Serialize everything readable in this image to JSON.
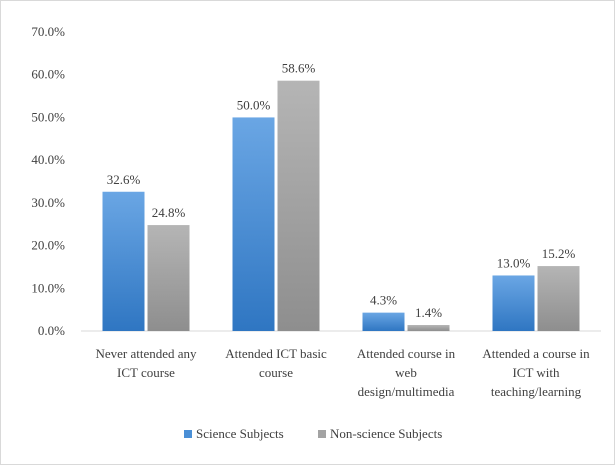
{
  "chart_data": {
    "type": "bar",
    "categories": [
      [
        "Never attended any",
        "ICT course"
      ],
      [
        "Attended ICT basic",
        "course"
      ],
      [
        "Attended course in",
        "web",
        "design/multimedia"
      ],
      [
        "Attended a course in",
        "ICT with",
        "teaching/learning"
      ]
    ],
    "series": [
      {
        "name": "Science Subjects",
        "values": [
          32.6,
          50.0,
          4.3,
          13.0
        ],
        "labels": [
          "32.6%",
          "50.0%",
          "4.3%",
          "13.0%"
        ],
        "color": "#4a8fd6"
      },
      {
        "name": "Non-science Subjects",
        "values": [
          24.8,
          58.6,
          1.4,
          15.2
        ],
        "labels": [
          "24.8%",
          "58.6%",
          "1.4%",
          "15.2%"
        ],
        "color": "#a3a3a3"
      }
    ],
    "y_ticks": [
      "0.0%",
      "10.0%",
      "20.0%",
      "30.0%",
      "40.0%",
      "50.0%",
      "60.0%",
      "70.0%"
    ],
    "ylim": [
      0,
      70
    ],
    "grid": false,
    "legend": "bottom"
  }
}
